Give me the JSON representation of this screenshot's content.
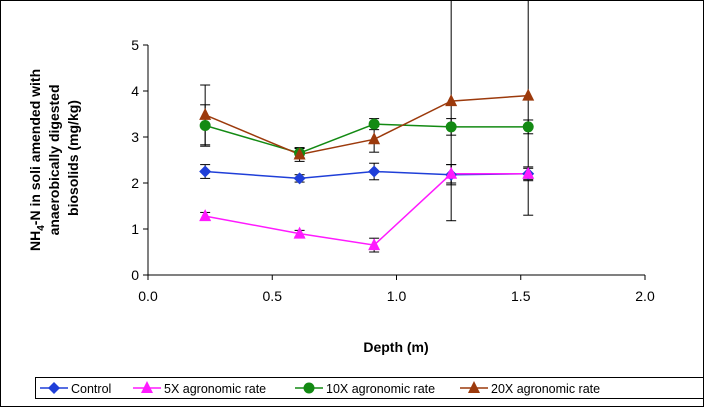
{
  "chart_data": {
    "type": "line",
    "title": "",
    "xlabel": "Depth (m)",
    "ylabel": {
      "prefix": "NH",
      "sub": "4",
      "rest": "-N in soli amended with",
      "line2": "anaerobically digested",
      "line3": "biosolids (mg/kg)"
    },
    "xlim": [
      0.0,
      2.0
    ],
    "ylim": [
      0,
      5
    ],
    "xticks": [
      "0.0",
      "0.5",
      "1.0",
      "1.5",
      "2.0"
    ],
    "yticks": [
      "0",
      "1",
      "2",
      "3",
      "4",
      "5"
    ],
    "x": [
      0.23,
      0.61,
      0.91,
      1.22,
      1.53
    ],
    "grid": false,
    "legend_position": "bottom",
    "series": [
      {
        "name": "Control",
        "color": "#1f3fd8",
        "marker": "diamond",
        "values": [
          2.25,
          2.1,
          2.25,
          2.18,
          2.2
        ],
        "error": [
          0.15,
          0.08,
          0.18,
          0.22,
          0.15
        ]
      },
      {
        "name": "5X agronomic rate",
        "color": "#ff1aff",
        "marker": "triangle",
        "values": [
          1.28,
          0.9,
          0.65,
          2.2,
          2.2
        ],
        "error": [
          0.08,
          0.07,
          0.15,
          0.2,
          0.12
        ]
      },
      {
        "name": "10X agronomic rate",
        "color": "#138a13",
        "marker": "circle",
        "values": [
          3.25,
          2.65,
          3.28,
          3.22,
          3.22
        ],
        "error": [
          0.45,
          0.1,
          0.12,
          0.18,
          0.15
        ]
      },
      {
        "name": "20X agronomic rate",
        "color": "#9c3a0c",
        "marker": "triangle",
        "values": [
          3.48,
          2.62,
          2.95,
          3.78,
          3.9
        ],
        "error": [
          0.65,
          0.15,
          0.28,
          2.6,
          2.6
        ]
      }
    ]
  }
}
